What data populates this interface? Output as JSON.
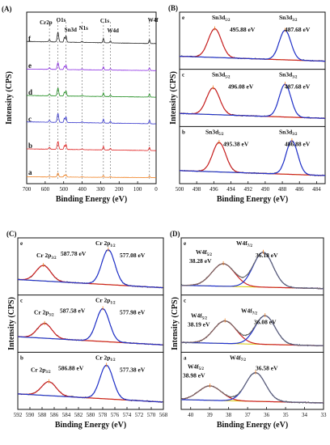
{
  "chart_data": [
    {
      "panel": "(A)",
      "type": "line",
      "xlabel": "Binding Energy (eV)",
      "ylabel": "Intensity (CPS)",
      "xlim": [
        700,
        0
      ],
      "xticks": [
        "700",
        "600",
        "500",
        "400",
        "300",
        "200",
        "100",
        "0"
      ],
      "series_labels": [
        "f",
        "e",
        "d",
        "c",
        "b",
        "a"
      ],
      "series_colors": [
        "#222222",
        "#8a2be2",
        "#1a8a1a",
        "#3333cc",
        "#e02020",
        "#f08020"
      ],
      "peak_labels": [
        "Cr2p",
        "O1s",
        "Sn3d",
        "N1s",
        "C1s",
        "W4d",
        "W4f"
      ],
      "peak_positions": [
        577,
        531,
        487,
        400,
        285,
        247,
        36
      ]
    },
    {
      "panel": "(B)",
      "type": "line",
      "xlabel": "Binding Energy (eV)",
      "ylabel": "Intensity (CPS)",
      "xlim": [
        500,
        483
      ],
      "xticks": [
        "500",
        "498",
        "496",
        "494",
        "492",
        "490",
        "488",
        "486",
        "484"
      ],
      "subpanels": [
        {
          "tag": "e",
          "peak1_label": "Sn3d5/2",
          "peak1_value": "495.88 eV",
          "peak2_label": "Sn3d3/2",
          "peak2_value": "487.68 eV",
          "peaks": [
            495.88,
            487.68
          ]
        },
        {
          "tag": "c",
          "peak1_label": "Sn3d5/2",
          "peak1_value": "496.08 eV",
          "peak2_label": "Sn3d3/2",
          "peak2_value": "487.68 eV",
          "peaks": [
            496.08,
            487.68
          ]
        },
        {
          "tag": "b",
          "peak1_label": "Sn3d5/2",
          "peak1_value": "495.38 eV",
          "peak2_label": "Sn3d3/2",
          "peak2_value": "486.88 eV",
          "peaks": [
            495.38,
            486.88
          ]
        }
      ]
    },
    {
      "panel": "(C)",
      "type": "line",
      "xlabel": "Binding Energy (eV)",
      "ylabel": "Intensity (CPS)",
      "xlim": [
        592,
        568
      ],
      "xticks": [
        "592",
        "590",
        "588",
        "586",
        "584",
        "582",
        "580",
        "578",
        "576",
        "574",
        "572",
        "570",
        "568"
      ],
      "subpanels": [
        {
          "tag": "e",
          "peak1_label": "Cr 2p3/2",
          "peak1_value": "587.78 eV",
          "peak2_label": "Cr 2p1/2",
          "peak2_value": "577.08 eV",
          "peaks": [
            587.78,
            577.08
          ]
        },
        {
          "tag": "c",
          "peak1_label": "Cr 2p3/2",
          "peak1_value": "587.58 eV",
          "peak2_label": "Cr 2p1/2",
          "peak2_value": "577.98 eV",
          "peaks": [
            587.58,
            577.98
          ]
        },
        {
          "tag": "b",
          "peak1_label": "Cr 2p3/2",
          "peak1_value": "586.88 eV",
          "peak2_label": "Cr 2p1/2",
          "peak2_value": "577.38 eV",
          "peaks": [
            586.88,
            577.38
          ]
        }
      ]
    },
    {
      "panel": "(D)",
      "type": "line",
      "xlabel": "Binding Energy (eV)",
      "ylabel": "Intensity (CPS)",
      "xlim": [
        40.5,
        33
      ],
      "xticks": [
        "40",
        "39",
        "38",
        "37",
        "36",
        "35",
        "34",
        "33"
      ],
      "subpanels": [
        {
          "tag": "e",
          "peak1_label": "W4f5/2",
          "peak1_value": "38.28 eV",
          "peak2_label": "W4f7/2",
          "peak2_value": "36.18 eV",
          "peaks": [
            38.28,
            36.18
          ]
        },
        {
          "tag": "c",
          "peak1_label": "W4f5/2",
          "peak1_value": "38.19 eV",
          "peak2_label": "W4f7/2",
          "peak2_value": "36.08 eV",
          "peaks": [
            38.19,
            36.08
          ]
        },
        {
          "tag": "a",
          "peak1_label": "W4f5/2",
          "peak1_value": "38.98 eV",
          "peak2_label": "W4f7/2",
          "peak2_value": "36.58 eV",
          "peaks": [
            38.98,
            36.58
          ]
        }
      ]
    }
  ],
  "colors": {
    "axis": "#111111",
    "fit_red": "#cc2222",
    "fit_blue": "#2233cc",
    "baseline_yellow": "#d8c800",
    "raw_black": "#222222",
    "fit_green": "#118844",
    "fit_orange": "#ee7711",
    "marker_orange": "#f08020"
  }
}
